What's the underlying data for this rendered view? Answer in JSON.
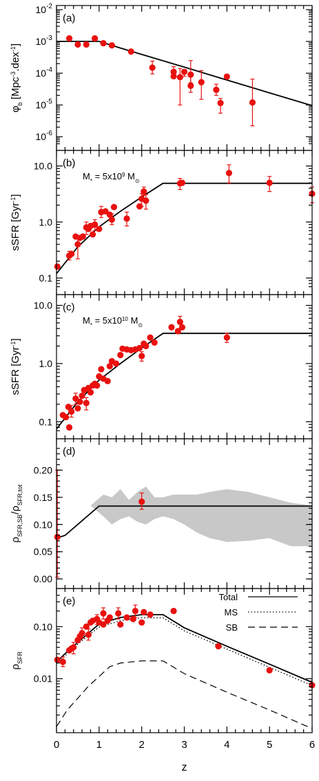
{
  "figure": {
    "x_title": "z"
  },
  "chart_data": [
    {
      "id": "a",
      "panel_label": "(a)",
      "type": "scatter",
      "ylabel": {
        "base": "φ",
        "sub": "b",
        "rest": " [Mpc",
        "sup": "-3",
        "mid": ".dex",
        "sup2": "-1",
        "end": "]"
      },
      "yscale": "log",
      "ylim": [
        5e-07,
        0.01
      ],
      "xlim": [
        0,
        6
      ],
      "yticks": [
        1e-06,
        1e-05,
        0.0001,
        0.001,
        0.01
      ],
      "ytick_labels": [
        {
          "base": "10",
          "sup": "-6"
        },
        {
          "base": "10",
          "sup": "-5"
        },
        {
          "base": "10",
          "sup": "-4"
        },
        {
          "base": "10",
          "sup": "-3"
        },
        {
          "base": "10",
          "sup": "-2"
        }
      ],
      "model": {
        "name": "model",
        "x": [
          0,
          1,
          1.5,
          2,
          3,
          4,
          5,
          6
        ],
        "y": [
          0.001,
          0.001,
          0.00062,
          0.00039,
          0.000155,
          6.1e-05,
          2.4e-05,
          9.5e-06
        ]
      },
      "points": [
        {
          "x": 0.3,
          "y": 0.00125
        },
        {
          "x": 0.5,
          "y": 0.0008
        },
        {
          "x": 0.7,
          "y": 0.0008
        },
        {
          "x": 0.9,
          "y": 0.00125
        },
        {
          "x": 1.1,
          "y": 0.00088
        },
        {
          "x": 1.3,
          "y": 0.00075
        },
        {
          "x": 1.75,
          "y": 0.00048
        },
        {
          "x": 2.25,
          "y": 0.00015,
          "lo": 9.5e-05,
          "hi": 0.00024
        },
        {
          "x": 2.75,
          "y": 0.00011,
          "lo": 7.5e-05,
          "hi": 0.00016
        },
        {
          "x": 2.75,
          "y": 8e-05
        },
        {
          "x": 2.9,
          "y": 7.5e-05,
          "lo": 1e-05,
          "hi": 0.00014
        },
        {
          "x": 3.0,
          "y": 0.00011,
          "lo": 8e-05,
          "hi": 0.00013
        },
        {
          "x": 3.15,
          "y": 9e-05,
          "lo": 5e-05,
          "hi": 0.00025
        },
        {
          "x": 3.15,
          "y": 4e-05,
          "lo": 2.5e-05,
          "hi": 0.0001
        },
        {
          "x": 3.4,
          "y": 5.2e-05,
          "lo": 1.5e-05,
          "hi": 0.00012
        },
        {
          "x": 3.75,
          "y": 3e-05,
          "lo": 2e-05,
          "hi": 4.5e-05
        },
        {
          "x": 3.85,
          "y": 1.15e-05,
          "lo": 5.5e-06,
          "hi": 1.6e-05
        },
        {
          "x": 4.0,
          "y": 7.8e-05
        },
        {
          "x": 4.6,
          "y": 1.2e-05,
          "lo": 2.2e-06,
          "hi": 6.5e-05
        }
      ]
    },
    {
      "id": "b",
      "panel_label": "(b)",
      "type": "scatter",
      "ylabel": {
        "base": "sSFR [Gyr",
        "sup": "-1",
        "end": "]"
      },
      "annotation": {
        "base": "M",
        "sub": "*",
        "mid": " = 5x10",
        "sup": "9",
        "end": " M",
        "sub2": "⊙"
      },
      "yscale": "log",
      "ylim": [
        0.06,
        16
      ],
      "xlim": [
        0,
        6
      ],
      "yticks": [
        0.1,
        1.0,
        10.0
      ],
      "ytick_labels": [
        "0.1",
        "1.0",
        "10.0"
      ],
      "model": {
        "name": "model",
        "x": [
          0,
          0.5,
          1,
          1.5,
          2,
          2.5,
          6
        ],
        "y": [
          0.12,
          0.36,
          0.82,
          1.55,
          2.8,
          4.9,
          4.9
        ]
      },
      "points": [
        {
          "x": 0.02,
          "y": 0.16
        },
        {
          "x": 0.3,
          "y": 0.25,
          "lo": 0.21,
          "hi": 0.3
        },
        {
          "x": 0.35,
          "y": 0.27
        },
        {
          "x": 0.45,
          "y": 0.55
        },
        {
          "x": 0.5,
          "y": 0.4,
          "lo": 0.22,
          "hi": 0.55
        },
        {
          "x": 0.55,
          "y": 0.52
        },
        {
          "x": 0.62,
          "y": 0.55
        },
        {
          "x": 0.7,
          "y": 0.8,
          "lo": 0.6,
          "hi": 1.0
        },
        {
          "x": 0.75,
          "y": 0.75
        },
        {
          "x": 0.8,
          "y": 0.85
        },
        {
          "x": 0.85,
          "y": 0.6
        },
        {
          "x": 0.9,
          "y": 0.9,
          "lo": 0.7,
          "hi": 1.1
        },
        {
          "x": 1.0,
          "y": 0.75
        },
        {
          "x": 1.05,
          "y": 1.5,
          "lo": 1.2,
          "hi": 1.9
        },
        {
          "x": 1.15,
          "y": 1.55
        },
        {
          "x": 1.25,
          "y": 1.35
        },
        {
          "x": 1.3,
          "y": 1.1,
          "lo": 0.9,
          "hi": 1.4
        },
        {
          "x": 1.35,
          "y": 1.85
        },
        {
          "x": 1.65,
          "y": 1.15,
          "lo": 0.85,
          "hi": 1.5
        },
        {
          "x": 1.95,
          "y": 1.9
        },
        {
          "x": 2.0,
          "y": 2.6,
          "lo": 1.9,
          "hi": 3.2
        },
        {
          "x": 2.05,
          "y": 3.5,
          "lo": 3.0,
          "hi": 4.2
        },
        {
          "x": 2.1,
          "y": 2.4,
          "lo": 1.7,
          "hi": 3.1
        },
        {
          "x": 2.9,
          "y": 4.9,
          "lo": 3.8,
          "hi": 6.0
        },
        {
          "x": 2.95,
          "y": 5.0
        },
        {
          "x": 4.05,
          "y": 7.5,
          "lo": 5.0,
          "hi": 10.5
        },
        {
          "x": 5.0,
          "y": 5.0,
          "lo": 3.5,
          "hi": 6.5
        },
        {
          "x": 6.0,
          "y": 3.2,
          "lo": 2.2,
          "hi": 4.2
        }
      ]
    },
    {
      "id": "c",
      "panel_label": "(c)",
      "type": "scatter",
      "ylabel": {
        "base": "sSFR [Gyr",
        "sup": "-1",
        "end": "]"
      },
      "annotation": {
        "base": "M",
        "sub": "*",
        "mid": " = 5x10",
        "sup": "10",
        "end": " M",
        "sub2": "⊙"
      },
      "yscale": "log",
      "ylim": [
        0.06,
        13
      ],
      "xlim": [
        0,
        6
      ],
      "yticks": [
        0.1,
        1.0,
        10.0
      ],
      "ytick_labels": [
        "0.1",
        "1.0",
        "10.0"
      ],
      "model": {
        "name": "model",
        "x": [
          0,
          0.5,
          1,
          1.5,
          2,
          2.5,
          6
        ],
        "y": [
          0.075,
          0.22,
          0.52,
          1.0,
          1.85,
          3.3,
          3.3
        ]
      },
      "points": [
        {
          "x": 0.15,
          "y": 0.13
        },
        {
          "x": 0.22,
          "y": 0.12
        },
        {
          "x": 0.28,
          "y": 0.18
        },
        {
          "x": 0.3,
          "y": 0.08
        },
        {
          "x": 0.35,
          "y": 0.15,
          "lo": 0.12,
          "hi": 0.19
        },
        {
          "x": 0.45,
          "y": 0.25,
          "lo": 0.2,
          "hi": 0.31
        },
        {
          "x": 0.5,
          "y": 0.17
        },
        {
          "x": 0.55,
          "y": 0.22
        },
        {
          "x": 0.6,
          "y": 0.28
        },
        {
          "x": 0.65,
          "y": 0.35
        },
        {
          "x": 0.7,
          "y": 0.21,
          "lo": 0.16,
          "hi": 0.26
        },
        {
          "x": 0.75,
          "y": 0.38
        },
        {
          "x": 0.8,
          "y": 0.32
        },
        {
          "x": 0.85,
          "y": 0.42
        },
        {
          "x": 0.9,
          "y": 0.45
        },
        {
          "x": 0.95,
          "y": 0.42
        },
        {
          "x": 1.0,
          "y": 0.6
        },
        {
          "x": 1.05,
          "y": 0.8
        },
        {
          "x": 1.1,
          "y": 0.55
        },
        {
          "x": 1.2,
          "y": 0.5
        },
        {
          "x": 1.25,
          "y": 0.9
        },
        {
          "x": 1.3,
          "y": 1.1
        },
        {
          "x": 1.4,
          "y": 1.0
        },
        {
          "x": 1.5,
          "y": 1.4
        },
        {
          "x": 1.55,
          "y": 1.8
        },
        {
          "x": 1.65,
          "y": 1.75
        },
        {
          "x": 1.75,
          "y": 1.7
        },
        {
          "x": 1.85,
          "y": 1.75
        },
        {
          "x": 1.95,
          "y": 1.85
        },
        {
          "x": 2.0,
          "y": 1.35,
          "lo": 1.1,
          "hi": 1.6
        },
        {
          "x": 2.05,
          "y": 2.2
        },
        {
          "x": 2.1,
          "y": 2.0
        },
        {
          "x": 2.2,
          "y": 2.8
        },
        {
          "x": 2.3,
          "y": 2.3
        },
        {
          "x": 2.7,
          "y": 4.2
        },
        {
          "x": 2.85,
          "y": 3.6
        },
        {
          "x": 2.9,
          "y": 5.2,
          "lo": 4.0,
          "hi": 6.5
        },
        {
          "x": 2.95,
          "y": 4.2
        },
        {
          "x": 4.0,
          "y": 2.8,
          "lo": 2.3,
          "hi": 3.3
        }
      ]
    },
    {
      "id": "d",
      "panel_label": "(d)",
      "type": "line",
      "ylabel": {
        "base": "ρ",
        "sub": "SFR,SB",
        "mid": "/ρ",
        "sub2": "SFR,tot"
      },
      "yscale": "linear",
      "ylim": [
        -0.01,
        0.25
      ],
      "xlim": [
        0,
        6
      ],
      "yticks": [
        0.0,
        0.05,
        0.1,
        0.15,
        0.2
      ],
      "ytick_labels": [
        "0.00",
        "0.05",
        "0.10",
        "0.15",
        "0.20"
      ],
      "band_upper": {
        "x": [
          0.8,
          1.1,
          1.3,
          1.5,
          1.7,
          1.9,
          2.1,
          2.3,
          2.5,
          2.75,
          3.0,
          3.3,
          3.6,
          4.0,
          4.5,
          5.0,
          5.5,
          6.0
        ],
        "y": [
          0.135,
          0.155,
          0.15,
          0.165,
          0.145,
          0.16,
          0.17,
          0.15,
          0.15,
          0.155,
          0.155,
          0.155,
          0.16,
          0.165,
          0.16,
          0.15,
          0.14,
          0.135
        ]
      },
      "band_lower": {
        "x": [
          0.8,
          1.1,
          1.3,
          1.5,
          1.7,
          1.9,
          2.1,
          2.3,
          2.5,
          2.75,
          3.0,
          3.3,
          3.6,
          4.0,
          4.5,
          5.0,
          5.5,
          6.0
        ],
        "y": [
          0.135,
          0.115,
          0.1,
          0.11,
          0.115,
          0.105,
          0.1,
          0.11,
          0.115,
          0.11,
          0.1,
          0.085,
          0.075,
          0.068,
          0.07,
          0.075,
          0.06,
          0.06
        ]
      },
      "model": {
        "name": "model",
        "x": [
          0,
          0.2,
          1.0,
          6.0
        ],
        "y": [
          0.075,
          0.08,
          0.134,
          0.134
        ]
      },
      "points": [
        {
          "x": 0.02,
          "y": 0.077,
          "lo": 0.003,
          "hi": 0.2
        },
        {
          "x": 2.0,
          "y": 0.142,
          "lo": 0.128,
          "hi": 0.158
        }
      ]
    },
    {
      "id": "e",
      "panel_label": "(e)",
      "type": "line",
      "ylabel": {
        "base": "ρ",
        "sub": "SFR"
      },
      "yscale": "log",
      "ylim": [
        0.0011,
        0.45
      ],
      "xlim": [
        0,
        6
      ],
      "yticks": [
        0.01,
        0.1
      ],
      "ytick_labels": [
        "0.01",
        "0.10"
      ],
      "legend": [
        {
          "label": "Total",
          "style": "solid"
        },
        {
          "label": "MS",
          "style": "dotted"
        },
        {
          "label": "SB",
          "style": "dashed"
        }
      ],
      "series": [
        {
          "name": "Total",
          "x": [
            0,
            0.25,
            0.5,
            0.75,
            1.0,
            1.25,
            1.5,
            2.0,
            2.5,
            3.0,
            4.0,
            5.0,
            6.0
          ],
          "y": [
            0.021,
            0.033,
            0.05,
            0.075,
            0.112,
            0.13,
            0.15,
            0.17,
            0.17,
            0.095,
            0.042,
            0.019,
            0.0085
          ]
        },
        {
          "name": "MS",
          "x": [
            0,
            0.25,
            0.5,
            0.75,
            1.0,
            1.25,
            1.5,
            2.0,
            2.5,
            3.0,
            4.0,
            5.0,
            6.0
          ],
          "y": [
            0.0195,
            0.03,
            0.046,
            0.068,
            0.098,
            0.113,
            0.13,
            0.148,
            0.148,
            0.083,
            0.037,
            0.0165,
            0.0074
          ]
        },
        {
          "name": "SB",
          "x": [
            0,
            0.1,
            0.25,
            0.5,
            0.75,
            1.0,
            1.25,
            1.5,
            2.0,
            2.5,
            3.0,
            4.0,
            5.0,
            6.0
          ],
          "y": [
            0.0012,
            0.0016,
            0.0025,
            0.0042,
            0.0072,
            0.011,
            0.017,
            0.02,
            0.022,
            0.022,
            0.0125,
            0.0055,
            0.0025,
            0.0011
          ]
        }
      ],
      "points": [
        {
          "x": 0.02,
          "y": 0.023
        },
        {
          "x": 0.15,
          "y": 0.021,
          "lo": 0.017,
          "hi": 0.026
        },
        {
          "x": 0.3,
          "y": 0.035
        },
        {
          "x": 0.35,
          "y": 0.038
        },
        {
          "x": 0.4,
          "y": 0.04,
          "lo": 0.03,
          "hi": 0.05
        },
        {
          "x": 0.5,
          "y": 0.055
        },
        {
          "x": 0.55,
          "y": 0.065
        },
        {
          "x": 0.6,
          "y": 0.075,
          "lo": 0.06,
          "hi": 0.095
        },
        {
          "x": 0.7,
          "y": 0.1
        },
        {
          "x": 0.75,
          "y": 0.07,
          "lo": 0.055,
          "hi": 0.09
        },
        {
          "x": 0.8,
          "y": 0.12
        },
        {
          "x": 0.85,
          "y": 0.13
        },
        {
          "x": 0.95,
          "y": 0.14,
          "lo": 0.11,
          "hi": 0.17
        },
        {
          "x": 1.0,
          "y": 0.12
        },
        {
          "x": 1.1,
          "y": 0.11
        },
        {
          "x": 1.1,
          "y": 0.18,
          "lo": 0.14,
          "hi": 0.23
        },
        {
          "x": 1.2,
          "y": 0.13
        },
        {
          "x": 1.25,
          "y": 0.15
        },
        {
          "x": 1.45,
          "y": 0.18,
          "lo": 0.14,
          "hi": 0.23
        },
        {
          "x": 1.5,
          "y": 0.11
        },
        {
          "x": 1.65,
          "y": 0.15
        },
        {
          "x": 1.8,
          "y": 0.14
        },
        {
          "x": 1.85,
          "y": 0.2,
          "lo": 0.15,
          "hi": 0.26
        },
        {
          "x": 2.0,
          "y": 0.12
        },
        {
          "x": 2.05,
          "y": 0.19
        },
        {
          "x": 2.2,
          "y": 0.17
        },
        {
          "x": 2.75,
          "y": 0.2
        },
        {
          "x": 3.8,
          "y": 0.042
        },
        {
          "x": 5.0,
          "y": 0.0145
        },
        {
          "x": 6.0,
          "y": 0.0075
        }
      ]
    }
  ],
  "xaxis": {
    "ticks": [
      0,
      1,
      2,
      3,
      4,
      5,
      6
    ],
    "tick_labels": [
      "0",
      "1",
      "2",
      "3",
      "4",
      "5",
      "6"
    ]
  },
  "colors": {
    "points": "#e8110f",
    "line": "#000000",
    "band": "#c8c8c8"
  }
}
